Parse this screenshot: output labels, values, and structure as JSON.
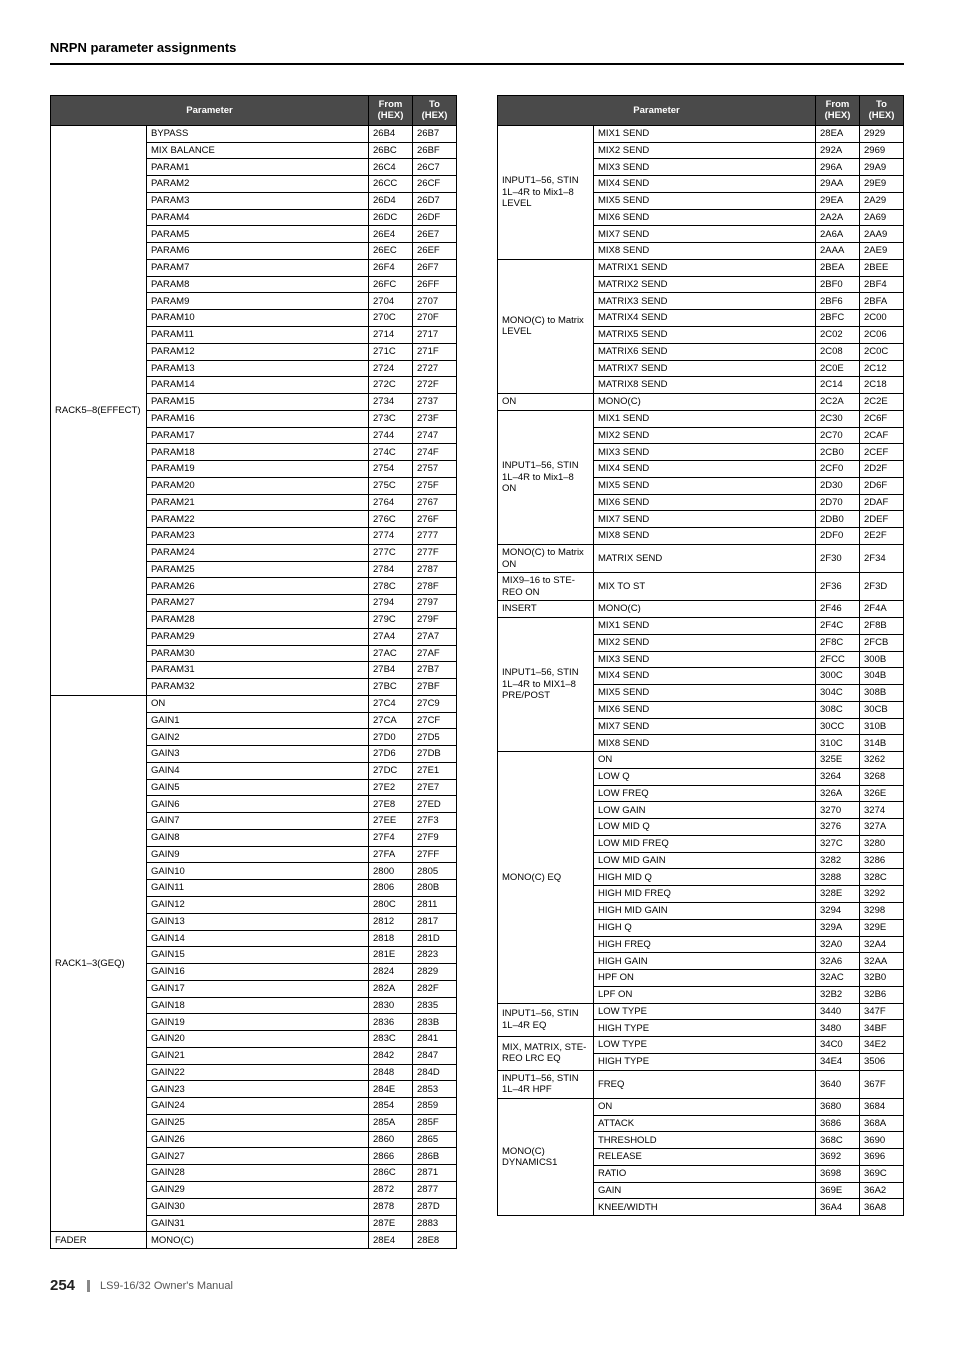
{
  "header": {
    "title": "NRPN parameter assignments"
  },
  "footer": {
    "page": "254",
    "manual": "LS9-16/32  Owner's Manual"
  },
  "table_headers": {
    "parameter": "Parameter",
    "from": "From\n(HEX)",
    "to": "To\n(HEX)"
  },
  "left_groups": [
    {
      "group": "RACK5–8(EFFECT)",
      "rows": [
        [
          "BYPASS",
          "26B4",
          "26B7"
        ],
        [
          "MIX BALANCE",
          "26BC",
          "26BF"
        ],
        [
          "PARAM1",
          "26C4",
          "26C7"
        ],
        [
          "PARAM2",
          "26CC",
          "26CF"
        ],
        [
          "PARAM3",
          "26D4",
          "26D7"
        ],
        [
          "PARAM4",
          "26DC",
          "26DF"
        ],
        [
          "PARAM5",
          "26E4",
          "26E7"
        ],
        [
          "PARAM6",
          "26EC",
          "26EF"
        ],
        [
          "PARAM7",
          "26F4",
          "26F7"
        ],
        [
          "PARAM8",
          "26FC",
          "26FF"
        ],
        [
          "PARAM9",
          "2704",
          "2707"
        ],
        [
          "PARAM10",
          "270C",
          "270F"
        ],
        [
          "PARAM11",
          "2714",
          "2717"
        ],
        [
          "PARAM12",
          "271C",
          "271F"
        ],
        [
          "PARAM13",
          "2724",
          "2727"
        ],
        [
          "PARAM14",
          "272C",
          "272F"
        ],
        [
          "PARAM15",
          "2734",
          "2737"
        ],
        [
          "PARAM16",
          "273C",
          "273F"
        ],
        [
          "PARAM17",
          "2744",
          "2747"
        ],
        [
          "PARAM18",
          "274C",
          "274F"
        ],
        [
          "PARAM19",
          "2754",
          "2757"
        ],
        [
          "PARAM20",
          "275C",
          "275F"
        ],
        [
          "PARAM21",
          "2764",
          "2767"
        ],
        [
          "PARAM22",
          "276C",
          "276F"
        ],
        [
          "PARAM23",
          "2774",
          "2777"
        ],
        [
          "PARAM24",
          "277C",
          "277F"
        ],
        [
          "PARAM25",
          "2784",
          "2787"
        ],
        [
          "PARAM26",
          "278C",
          "278F"
        ],
        [
          "PARAM27",
          "2794",
          "2797"
        ],
        [
          "PARAM28",
          "279C",
          "279F"
        ],
        [
          "PARAM29",
          "27A4",
          "27A7"
        ],
        [
          "PARAM30",
          "27AC",
          "27AF"
        ],
        [
          "PARAM31",
          "27B4",
          "27B7"
        ],
        [
          "PARAM32",
          "27BC",
          "27BF"
        ]
      ]
    },
    {
      "group": "RACK1–3(GEQ)",
      "rows": [
        [
          "ON",
          "27C4",
          "27C9"
        ],
        [
          "GAIN1",
          "27CA",
          "27CF"
        ],
        [
          "GAIN2",
          "27D0",
          "27D5"
        ],
        [
          "GAIN3",
          "27D6",
          "27DB"
        ],
        [
          "GAIN4",
          "27DC",
          "27E1"
        ],
        [
          "GAIN5",
          "27E2",
          "27E7"
        ],
        [
          "GAIN6",
          "27E8",
          "27ED"
        ],
        [
          "GAIN7",
          "27EE",
          "27F3"
        ],
        [
          "GAIN8",
          "27F4",
          "27F9"
        ],
        [
          "GAIN9",
          "27FA",
          "27FF"
        ],
        [
          "GAIN10",
          "2800",
          "2805"
        ],
        [
          "GAIN11",
          "2806",
          "280B"
        ],
        [
          "GAIN12",
          "280C",
          "2811"
        ],
        [
          "GAIN13",
          "2812",
          "2817"
        ],
        [
          "GAIN14",
          "2818",
          "281D"
        ],
        [
          "GAIN15",
          "281E",
          "2823"
        ],
        [
          "GAIN16",
          "2824",
          "2829"
        ],
        [
          "GAIN17",
          "282A",
          "282F"
        ],
        [
          "GAIN18",
          "2830",
          "2835"
        ],
        [
          "GAIN19",
          "2836",
          "283B"
        ],
        [
          "GAIN20",
          "283C",
          "2841"
        ],
        [
          "GAIN21",
          "2842",
          "2847"
        ],
        [
          "GAIN22",
          "2848",
          "284D"
        ],
        [
          "GAIN23",
          "284E",
          "2853"
        ],
        [
          "GAIN24",
          "2854",
          "2859"
        ],
        [
          "GAIN25",
          "285A",
          "285F"
        ],
        [
          "GAIN26",
          "2860",
          "2865"
        ],
        [
          "GAIN27",
          "2866",
          "286B"
        ],
        [
          "GAIN28",
          "286C",
          "2871"
        ],
        [
          "GAIN29",
          "2872",
          "2877"
        ],
        [
          "GAIN30",
          "2878",
          "287D"
        ],
        [
          "GAIN31",
          "287E",
          "2883"
        ]
      ]
    },
    {
      "group": "FADER",
      "rows": [
        [
          "MONO(C)",
          "28E4",
          "28E8"
        ]
      ]
    }
  ],
  "right_groups": [
    {
      "group": "INPUT1–56, STIN 1L–4R to Mix1–8 LEVEL",
      "rows": [
        [
          "MIX1 SEND",
          "28EA",
          "2929"
        ],
        [
          "MIX2 SEND",
          "292A",
          "2969"
        ],
        [
          "MIX3 SEND",
          "296A",
          "29A9"
        ],
        [
          "MIX4 SEND",
          "29AA",
          "29E9"
        ],
        [
          "MIX5 SEND",
          "29EA",
          "2A29"
        ],
        [
          "MIX6 SEND",
          "2A2A",
          "2A69"
        ],
        [
          "MIX7 SEND",
          "2A6A",
          "2AA9"
        ],
        [
          "MIX8 SEND",
          "2AAA",
          "2AE9"
        ]
      ]
    },
    {
      "group": "MONO(C) to Matrix LEVEL",
      "rows": [
        [
          "MATRIX1 SEND",
          "2BEA",
          "2BEE"
        ],
        [
          "MATRIX2 SEND",
          "2BF0",
          "2BF4"
        ],
        [
          "MATRIX3 SEND",
          "2BF6",
          "2BFA"
        ],
        [
          "MATRIX4 SEND",
          "2BFC",
          "2C00"
        ],
        [
          "MATRIX5 SEND",
          "2C02",
          "2C06"
        ],
        [
          "MATRIX6 SEND",
          "2C08",
          "2C0C"
        ],
        [
          "MATRIX7 SEND",
          "2C0E",
          "2C12"
        ],
        [
          "MATRIX8 SEND",
          "2C14",
          "2C18"
        ]
      ]
    },
    {
      "group": "ON",
      "rows": [
        [
          "MONO(C)",
          "2C2A",
          "2C2E"
        ]
      ]
    },
    {
      "group": "INPUT1–56, STIN 1L–4R to Mix1–8 ON",
      "rows": [
        [
          "MIX1 SEND",
          "2C30",
          "2C6F"
        ],
        [
          "MIX2 SEND",
          "2C70",
          "2CAF"
        ],
        [
          "MIX3 SEND",
          "2CB0",
          "2CEF"
        ],
        [
          "MIX4 SEND",
          "2CF0",
          "2D2F"
        ],
        [
          "MIX5 SEND",
          "2D30",
          "2D6F"
        ],
        [
          "MIX6 SEND",
          "2D70",
          "2DAF"
        ],
        [
          "MIX7 SEND",
          "2DB0",
          "2DEF"
        ],
        [
          "MIX8 SEND",
          "2DF0",
          "2E2F"
        ]
      ]
    },
    {
      "group": "MONO(C) to Matrix ON",
      "rows": [
        [
          "MATRIX SEND",
          "2F30",
          "2F34"
        ]
      ]
    },
    {
      "group": "MIX9–16 to STE-REO ON",
      "rows": [
        [
          "MIX TO ST",
          "2F36",
          "2F3D"
        ]
      ]
    },
    {
      "group": "INSERT",
      "rows": [
        [
          "MONO(C)",
          "2F46",
          "2F4A"
        ]
      ]
    },
    {
      "group": "INPUT1–56, STIN 1L–4R to MIX1–8 PRE/POST",
      "rows": [
        [
          "MIX1 SEND",
          "2F4C",
          "2F8B"
        ],
        [
          "MIX2 SEND",
          "2F8C",
          "2FCB"
        ],
        [
          "MIX3 SEND",
          "2FCC",
          "300B"
        ],
        [
          "MIX4 SEND",
          "300C",
          "304B"
        ],
        [
          "MIX5 SEND",
          "304C",
          "308B"
        ],
        [
          "MIX6 SEND",
          "308C",
          "30CB"
        ],
        [
          "MIX7 SEND",
          "30CC",
          "310B"
        ],
        [
          "MIX8 SEND",
          "310C",
          "314B"
        ]
      ]
    },
    {
      "group": "MONO(C) EQ",
      "rows": [
        [
          "ON",
          "325E",
          "3262"
        ],
        [
          "LOW Q",
          "3264",
          "3268"
        ],
        [
          "LOW FREQ",
          "326A",
          "326E"
        ],
        [
          "LOW GAIN",
          "3270",
          "3274"
        ],
        [
          "LOW MID Q",
          "3276",
          "327A"
        ],
        [
          "LOW MID FREQ",
          "327C",
          "3280"
        ],
        [
          "LOW MID GAIN",
          "3282",
          "3286"
        ],
        [
          "HIGH MID Q",
          "3288",
          "328C"
        ],
        [
          "HIGH MID FREQ",
          "328E",
          "3292"
        ],
        [
          "HIGH MID GAIN",
          "3294",
          "3298"
        ],
        [
          "HIGH Q",
          "329A",
          "329E"
        ],
        [
          "HIGH FREQ",
          "32A0",
          "32A4"
        ],
        [
          "HIGH GAIN",
          "32A6",
          "32AA"
        ],
        [
          "HPF ON",
          "32AC",
          "32B0"
        ],
        [
          "LPF ON",
          "32B2",
          "32B6"
        ]
      ]
    },
    {
      "group": "INPUT1–56, STIN 1L–4R EQ",
      "rows": [
        [
          "LOW TYPE",
          "3440",
          "347F"
        ],
        [
          "HIGH TYPE",
          "3480",
          "34BF"
        ]
      ]
    },
    {
      "group": "MIX, MATRIX, STE-REO LRC EQ",
      "rows": [
        [
          "LOW TYPE",
          "34C0",
          "34E2"
        ],
        [
          "HIGH TYPE",
          "34E4",
          "3506"
        ]
      ]
    },
    {
      "group": "INPUT1–56, STIN 1L–4R HPF",
      "rows": [
        [
          "FREQ",
          "3640",
          "367F"
        ]
      ]
    },
    {
      "group": "MONO(C) DYNAMICS1",
      "rows": [
        [
          "ON",
          "3680",
          "3684"
        ],
        [
          "ATTACK",
          "3686",
          "368A"
        ],
        [
          "THRESHOLD",
          "368C",
          "3690"
        ],
        [
          "RELEASE",
          "3692",
          "3696"
        ],
        [
          "RATIO",
          "3698",
          "369C"
        ],
        [
          "GAIN",
          "369E",
          "36A2"
        ],
        [
          "KNEE/WIDTH",
          "36A4",
          "36A8"
        ]
      ]
    }
  ]
}
